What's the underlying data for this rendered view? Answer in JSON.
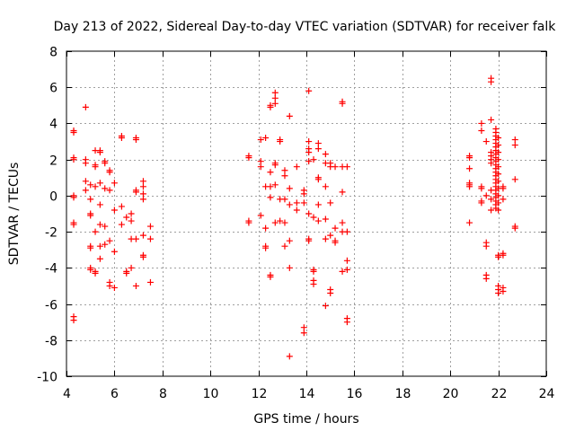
{
  "chart_data": {
    "type": "scatter",
    "title": "Day 213 of 2022, Sidereal Day-to-day VTEC variation (SDTVAR) for receiver falk",
    "xlabel": "GPS time / hours",
    "ylabel": "SDTVAR / TECUs",
    "xlim": [
      4,
      24
    ],
    "ylim": [
      -10,
      8
    ],
    "xticks": [
      4,
      6,
      8,
      10,
      12,
      14,
      16,
      18,
      20,
      22,
      24
    ],
    "yticks": [
      8,
      6,
      4,
      2,
      0,
      -2,
      -4,
      -6,
      -8,
      -10
    ],
    "xtick_labels": [
      "4",
      "6",
      "8",
      "10",
      "12",
      "14",
      "16",
      "18",
      "20",
      "22",
      "24"
    ],
    "ytick_labels": [
      "8",
      "6",
      "4",
      "2",
      "0",
      "-2",
      "-4",
      "-6",
      "-8",
      "-10"
    ],
    "grid": true,
    "marker": "plus",
    "color": "#ff0000",
    "points": [
      [
        4.3,
        3.6
      ],
      [
        4.3,
        3.5
      ],
      [
        4.3,
        2.1
      ],
      [
        4.3,
        2.0
      ],
      [
        4.3,
        0.0
      ],
      [
        4.3,
        -0.1
      ],
      [
        4.3,
        -1.5
      ],
      [
        4.3,
        -1.6
      ],
      [
        4.3,
        -6.7
      ],
      [
        4.3,
        -6.9
      ],
      [
        4.8,
        4.9
      ],
      [
        4.8,
        2.0
      ],
      [
        4.8,
        1.8
      ],
      [
        4.8,
        0.8
      ],
      [
        4.8,
        0.3
      ],
      [
        5.0,
        0.6
      ],
      [
        5.0,
        -0.2
      ],
      [
        5.0,
        -1.0
      ],
      [
        5.0,
        -1.1
      ],
      [
        5.0,
        -2.8
      ],
      [
        5.0,
        -2.9
      ],
      [
        5.0,
        -4.0
      ],
      [
        5.0,
        -4.1
      ],
      [
        5.2,
        2.5
      ],
      [
        5.2,
        1.7
      ],
      [
        5.2,
        1.6
      ],
      [
        5.2,
        0.5
      ],
      [
        5.2,
        -2.0
      ],
      [
        5.2,
        -4.2
      ],
      [
        5.2,
        -4.3
      ],
      [
        5.4,
        2.5
      ],
      [
        5.4,
        2.4
      ],
      [
        5.4,
        0.7
      ],
      [
        5.4,
        -0.5
      ],
      [
        5.4,
        -1.6
      ],
      [
        5.4,
        -2.8
      ],
      [
        5.4,
        -3.5
      ],
      [
        5.6,
        1.9
      ],
      [
        5.6,
        1.8
      ],
      [
        5.6,
        0.4
      ],
      [
        5.6,
        -1.7
      ],
      [
        5.6,
        -2.7
      ],
      [
        5.8,
        1.4
      ],
      [
        5.8,
        1.3
      ],
      [
        5.8,
        0.3
      ],
      [
        5.8,
        -2.5
      ],
      [
        5.8,
        -4.8
      ],
      [
        5.8,
        -5.0
      ],
      [
        6.0,
        0.7
      ],
      [
        6.0,
        -0.8
      ],
      [
        6.0,
        -3.1
      ],
      [
        6.0,
        -5.1
      ],
      [
        6.3,
        3.3
      ],
      [
        6.3,
        3.2
      ],
      [
        6.3,
        -0.6
      ],
      [
        6.3,
        -1.6
      ],
      [
        6.5,
        -1.2
      ],
      [
        6.5,
        -4.2
      ],
      [
        6.5,
        -4.3
      ],
      [
        6.7,
        -1.0
      ],
      [
        6.7,
        -1.4
      ],
      [
        6.7,
        -2.4
      ],
      [
        6.7,
        -4.0
      ],
      [
        6.9,
        3.2
      ],
      [
        6.9,
        3.1
      ],
      [
        6.9,
        0.3
      ],
      [
        6.9,
        0.2
      ],
      [
        6.9,
        -2.4
      ],
      [
        6.9,
        -5.0
      ],
      [
        7.2,
        0.8
      ],
      [
        7.2,
        0.5
      ],
      [
        7.2,
        0.1
      ],
      [
        7.2,
        -0.2
      ],
      [
        7.2,
        -2.2
      ],
      [
        7.2,
        -3.3
      ],
      [
        7.2,
        -3.4
      ],
      [
        7.5,
        -1.7
      ],
      [
        7.5,
        -2.4
      ],
      [
        7.5,
        -4.8
      ],
      [
        11.6,
        2.2
      ],
      [
        11.6,
        2.1
      ],
      [
        11.6,
        -1.5
      ],
      [
        11.6,
        -1.4
      ],
      [
        12.1,
        3.1
      ],
      [
        12.1,
        1.9
      ],
      [
        12.1,
        1.6
      ],
      [
        12.1,
        -1.1
      ],
      [
        12.3,
        3.2
      ],
      [
        12.3,
        0.5
      ],
      [
        12.3,
        -1.8
      ],
      [
        12.3,
        -2.8
      ],
      [
        12.3,
        -2.9
      ],
      [
        12.5,
        4.9
      ],
      [
        12.5,
        5.0
      ],
      [
        12.5,
        1.3
      ],
      [
        12.5,
        0.5
      ],
      [
        12.5,
        -0.1
      ],
      [
        12.5,
        -4.4
      ],
      [
        12.5,
        -4.5
      ],
      [
        12.7,
        5.7
      ],
      [
        12.7,
        5.4
      ],
      [
        12.7,
        5.1
      ],
      [
        12.7,
        1.8
      ],
      [
        12.7,
        1.7
      ],
      [
        12.7,
        0.6
      ],
      [
        12.7,
        -1.5
      ],
      [
        12.9,
        3.1
      ],
      [
        12.9,
        3.0
      ],
      [
        12.9,
        -0.2
      ],
      [
        12.9,
        -1.4
      ],
      [
        13.1,
        1.4
      ],
      [
        13.1,
        1.1
      ],
      [
        13.1,
        -0.2
      ],
      [
        13.1,
        -1.5
      ],
      [
        13.1,
        -2.8
      ],
      [
        13.3,
        4.4
      ],
      [
        13.3,
        0.4
      ],
      [
        13.3,
        -0.5
      ],
      [
        13.3,
        -2.5
      ],
      [
        13.3,
        -4.0
      ],
      [
        13.3,
        -8.9
      ],
      [
        13.6,
        1.6
      ],
      [
        13.6,
        -0.4
      ],
      [
        13.6,
        -0.8
      ],
      [
        13.9,
        0.3
      ],
      [
        13.9,
        0.1
      ],
      [
        13.9,
        -0.4
      ],
      [
        13.9,
        -7.3
      ],
      [
        13.9,
        -7.6
      ],
      [
        14.1,
        5.8
      ],
      [
        14.1,
        3.0
      ],
      [
        14.1,
        2.6
      ],
      [
        14.1,
        2.4
      ],
      [
        14.1,
        1.9
      ],
      [
        14.1,
        -1.0
      ],
      [
        14.1,
        -2.4
      ],
      [
        14.1,
        -2.5
      ],
      [
        14.3,
        2.0
      ],
      [
        14.3,
        -1.2
      ],
      [
        14.3,
        -4.1
      ],
      [
        14.3,
        -4.2
      ],
      [
        14.3,
        -4.7
      ],
      [
        14.3,
        -4.9
      ],
      [
        14.5,
        2.9
      ],
      [
        14.5,
        2.6
      ],
      [
        14.5,
        1.0
      ],
      [
        14.5,
        0.9
      ],
      [
        14.5,
        -0.5
      ],
      [
        14.5,
        -1.4
      ],
      [
        14.8,
        2.3
      ],
      [
        14.8,
        1.8
      ],
      [
        14.8,
        0.5
      ],
      [
        14.8,
        -1.3
      ],
      [
        14.8,
        -2.4
      ],
      [
        14.8,
        -6.1
      ],
      [
        15.0,
        1.8
      ],
      [
        15.0,
        1.6
      ],
      [
        15.0,
        -0.4
      ],
      [
        15.0,
        -2.2
      ],
      [
        15.0,
        -5.2
      ],
      [
        15.0,
        -5.4
      ],
      [
        15.2,
        1.6
      ],
      [
        15.2,
        -1.8
      ],
      [
        15.2,
        -2.5
      ],
      [
        15.2,
        -2.6
      ],
      [
        15.5,
        5.2
      ],
      [
        15.5,
        5.1
      ],
      [
        15.5,
        1.6
      ],
      [
        15.5,
        0.2
      ],
      [
        15.5,
        -1.5
      ],
      [
        15.5,
        -2.0
      ],
      [
        15.5,
        -4.2
      ],
      [
        15.7,
        -2.0
      ],
      [
        15.7,
        -3.6
      ],
      [
        15.7,
        -4.1
      ],
      [
        15.7,
        -6.8
      ],
      [
        15.7,
        -7.0
      ],
      [
        15.7,
        1.6
      ],
      [
        20.8,
        2.2
      ],
      [
        20.8,
        2.1
      ],
      [
        20.8,
        1.5
      ],
      [
        20.8,
        0.7
      ],
      [
        20.8,
        0.6
      ],
      [
        20.8,
        0.5
      ],
      [
        20.8,
        -1.5
      ],
      [
        21.3,
        4.0
      ],
      [
        21.3,
        3.6
      ],
      [
        21.3,
        0.5
      ],
      [
        21.3,
        0.4
      ],
      [
        21.3,
        -0.3
      ],
      [
        21.3,
        -0.4
      ],
      [
        21.5,
        3.0
      ],
      [
        21.5,
        -2.6
      ],
      [
        21.5,
        -2.8
      ],
      [
        21.5,
        -4.4
      ],
      [
        21.5,
        -4.6
      ],
      [
        21.5,
        0.0
      ],
      [
        21.7,
        6.5
      ],
      [
        21.7,
        6.3
      ],
      [
        21.7,
        4.2
      ],
      [
        21.7,
        2.4
      ],
      [
        21.7,
        2.2
      ],
      [
        21.7,
        2.0
      ],
      [
        21.7,
        1.8
      ],
      [
        21.7,
        0.3
      ],
      [
        21.7,
        -0.2
      ],
      [
        21.7,
        -0.8
      ],
      [
        21.9,
        3.7
      ],
      [
        21.9,
        3.5
      ],
      [
        21.9,
        3.3
      ],
      [
        21.9,
        3.1
      ],
      [
        21.9,
        2.9
      ],
      [
        21.9,
        2.7
      ],
      [
        21.9,
        2.5
      ],
      [
        21.9,
        2.3
      ],
      [
        21.9,
        2.1
      ],
      [
        21.9,
        1.9
      ],
      [
        21.9,
        1.7
      ],
      [
        21.9,
        1.5
      ],
      [
        21.9,
        1.3
      ],
      [
        21.9,
        1.1
      ],
      [
        21.9,
        0.9
      ],
      [
        21.9,
        0.7
      ],
      [
        21.9,
        0.5
      ],
      [
        21.9,
        0.3
      ],
      [
        21.9,
        0.1
      ],
      [
        21.9,
        -0.1
      ],
      [
        21.9,
        -0.3
      ],
      [
        21.9,
        -0.5
      ],
      [
        21.9,
        -0.7
      ],
      [
        22.0,
        3.2
      ],
      [
        22.0,
        2.8
      ],
      [
        22.0,
        2.4
      ],
      [
        22.0,
        2.0
      ],
      [
        22.0,
        1.6
      ],
      [
        22.0,
        1.2
      ],
      [
        22.0,
        0.8
      ],
      [
        22.0,
        0.4
      ],
      [
        22.0,
        0.0
      ],
      [
        22.0,
        -0.4
      ],
      [
        22.0,
        -0.8
      ],
      [
        22.0,
        -3.3
      ],
      [
        22.0,
        -3.4
      ],
      [
        22.0,
        -5.0
      ],
      [
        22.0,
        -5.2
      ],
      [
        22.0,
        -5.4
      ],
      [
        22.2,
        0.5
      ],
      [
        22.2,
        0.4
      ],
      [
        22.2,
        -0.2
      ],
      [
        22.2,
        -3.2
      ],
      [
        22.2,
        -3.3
      ],
      [
        22.2,
        -5.1
      ],
      [
        22.2,
        -5.3
      ],
      [
        22.7,
        3.1
      ],
      [
        22.7,
        2.8
      ],
      [
        22.7,
        0.9
      ],
      [
        22.7,
        -1.7
      ],
      [
        22.7,
        -1.8
      ]
    ]
  }
}
